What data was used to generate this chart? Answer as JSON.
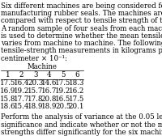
{
  "title_lines": [
    "Six different machines are being considered for use in",
    "manufacturing rubber seals. The machines are being",
    "compared with respect to tensile strength of the product.",
    "A random sample of four seals from each machine",
    "is used to determine whether the mean tensile strength",
    "varies from machine to machine. The following are the",
    "tensile-strength measurements in kilograms per square",
    "centimeter × 10⁻¹:"
  ],
  "table_header": "Machine",
  "col_headers": [
    "1",
    "2",
    "3",
    "4",
    "5",
    "6"
  ],
  "rows": [
    [
      "17.5",
      "16.4",
      "20.3",
      "14.6",
      "17.5",
      "18.3"
    ],
    [
      "16.9",
      "19.2",
      "15.7",
      "16.7",
      "19.2",
      "16.2"
    ],
    [
      "15.8",
      "17.7",
      "17.8",
      "20.8",
      "16.5",
      "17.5"
    ],
    [
      "18.6",
      "15.4",
      "18.9",
      "18.9",
      "20.5",
      "20.1"
    ]
  ],
  "footer_lines": [
    "Perform the analysis of variance at the 0.05 level of",
    "significance and indicate whether or not the mean tensile",
    "strengths differ significantly for the six machines."
  ],
  "bg_color": "#ffffff",
  "text_color": "#000000",
  "font_size": 6.2,
  "table_font_size": 6.2
}
